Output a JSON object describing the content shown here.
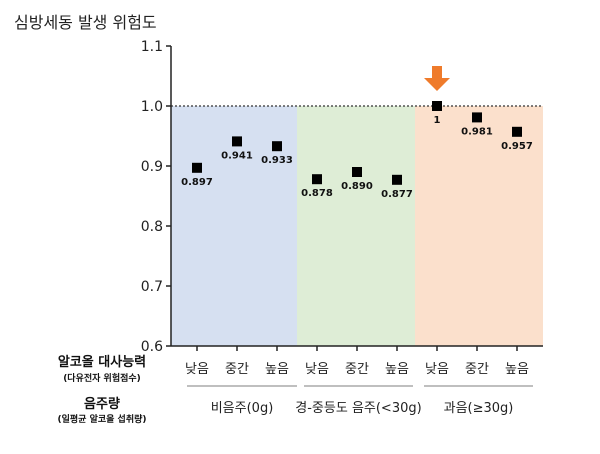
{
  "chart_data": {
    "type": "scatter",
    "ylabel": "심방세동 발생 위험도",
    "ylim": [
      0.6,
      1.1
    ],
    "yticks": [
      "0.6",
      "0.7",
      "0.8",
      "0.9",
      "1.0",
      "1.1"
    ],
    "reference_line": 1.0,
    "row_labels": {
      "metabolism": {
        "title": "알코올 대사능력",
        "subtitle": "(다유전자 위험점수)"
      },
      "intake": {
        "title": "음주량",
        "subtitle": "(일평균 알코올 섭취량)"
      }
    },
    "groups": [
      {
        "label": "비음주(0g)",
        "color": "#d6e0f1",
        "categories": [
          "낮음",
          "중간",
          "높음"
        ],
        "values": [
          0.897,
          0.941,
          0.933
        ],
        "value_labels": [
          "0.897",
          "0.941",
          "0.933"
        ]
      },
      {
        "label": "경-중등도 음주(<30g)",
        "color": "#deedd6",
        "categories": [
          "낮음",
          "중간",
          "높음"
        ],
        "values": [
          0.878,
          0.89,
          0.877
        ],
        "value_labels": [
          "0.878",
          "0.890",
          "0.877"
        ]
      },
      {
        "label": "과음(≥30g)",
        "color": "#fbe0cc",
        "categories": [
          "낮음",
          "중간",
          "높음"
        ],
        "values": [
          1,
          0.981,
          0.957
        ],
        "value_labels": [
          "1",
          "0.981",
          "0.957"
        ]
      }
    ],
    "highlight": {
      "group": 2,
      "index": 0,
      "icon": "down-arrow-icon",
      "color": "#ef7b2b"
    },
    "grid": false
  }
}
